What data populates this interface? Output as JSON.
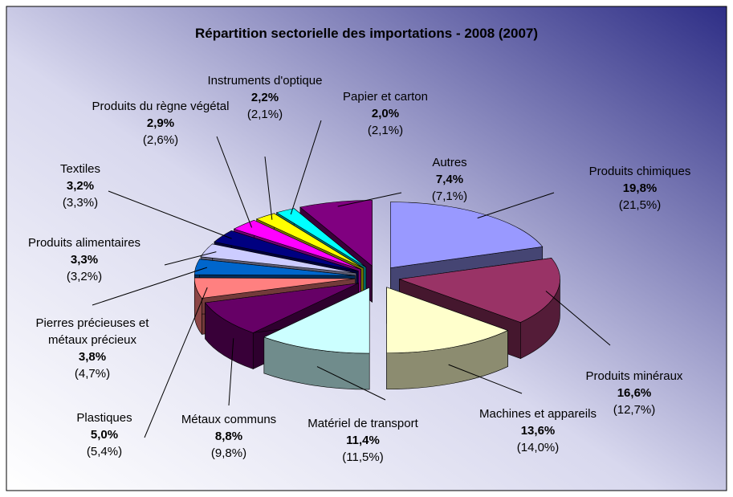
{
  "chart_data": {
    "type": "pie3d",
    "title": "Répartition sectorielle des importations - 2008 (2007)",
    "categories": [
      "Produits chimiques",
      "Produits minéraux",
      "Machines et appareils",
      "Matériel de transport",
      "Métaux communs",
      "Plastiques",
      "Pierres précieuses et métaux précieux",
      "Produits alimentaires",
      "Textiles",
      "Produits du règne végétal",
      "Instruments d'optique",
      "Papier et carton",
      "Autres"
    ],
    "values": [
      19.8,
      16.6,
      13.6,
      11.4,
      8.8,
      5.0,
      3.8,
      3.3,
      3.2,
      2.9,
      2.2,
      2.0,
      7.4
    ],
    "value_labels": [
      "19,8%",
      "16,6%",
      "13,6%",
      "11,4%",
      "8,8%",
      "5,0%",
      "3,8%",
      "3,3%",
      "3,2%",
      "2,9%",
      "2,2%",
      "2,0%",
      "7,4%"
    ],
    "previous_values": [
      21.5,
      12.7,
      14.0,
      11.5,
      9.8,
      5.4,
      4.7,
      3.2,
      3.3,
      2.6,
      2.1,
      2.1,
      7.1
    ],
    "previous_value_labels": [
      "(21,5%)",
      "(12,7%)",
      "(14,0%)",
      "(11,5%)",
      "(9,8%)",
      "(5,4%)",
      "(4,7%)",
      "(3,2%)",
      "(3,3%)",
      "(2,6%)",
      "(2,1%)",
      "(2,1%)",
      "(7,1%)"
    ],
    "colors": [
      "#9999ff",
      "#993366",
      "#ffffcc",
      "#ccffff",
      "#660066",
      "#ff8080",
      "#0066cc",
      "#ccccff",
      "#000080",
      "#ff00ff",
      "#ffff00",
      "#00ffff",
      "#800080"
    ]
  }
}
